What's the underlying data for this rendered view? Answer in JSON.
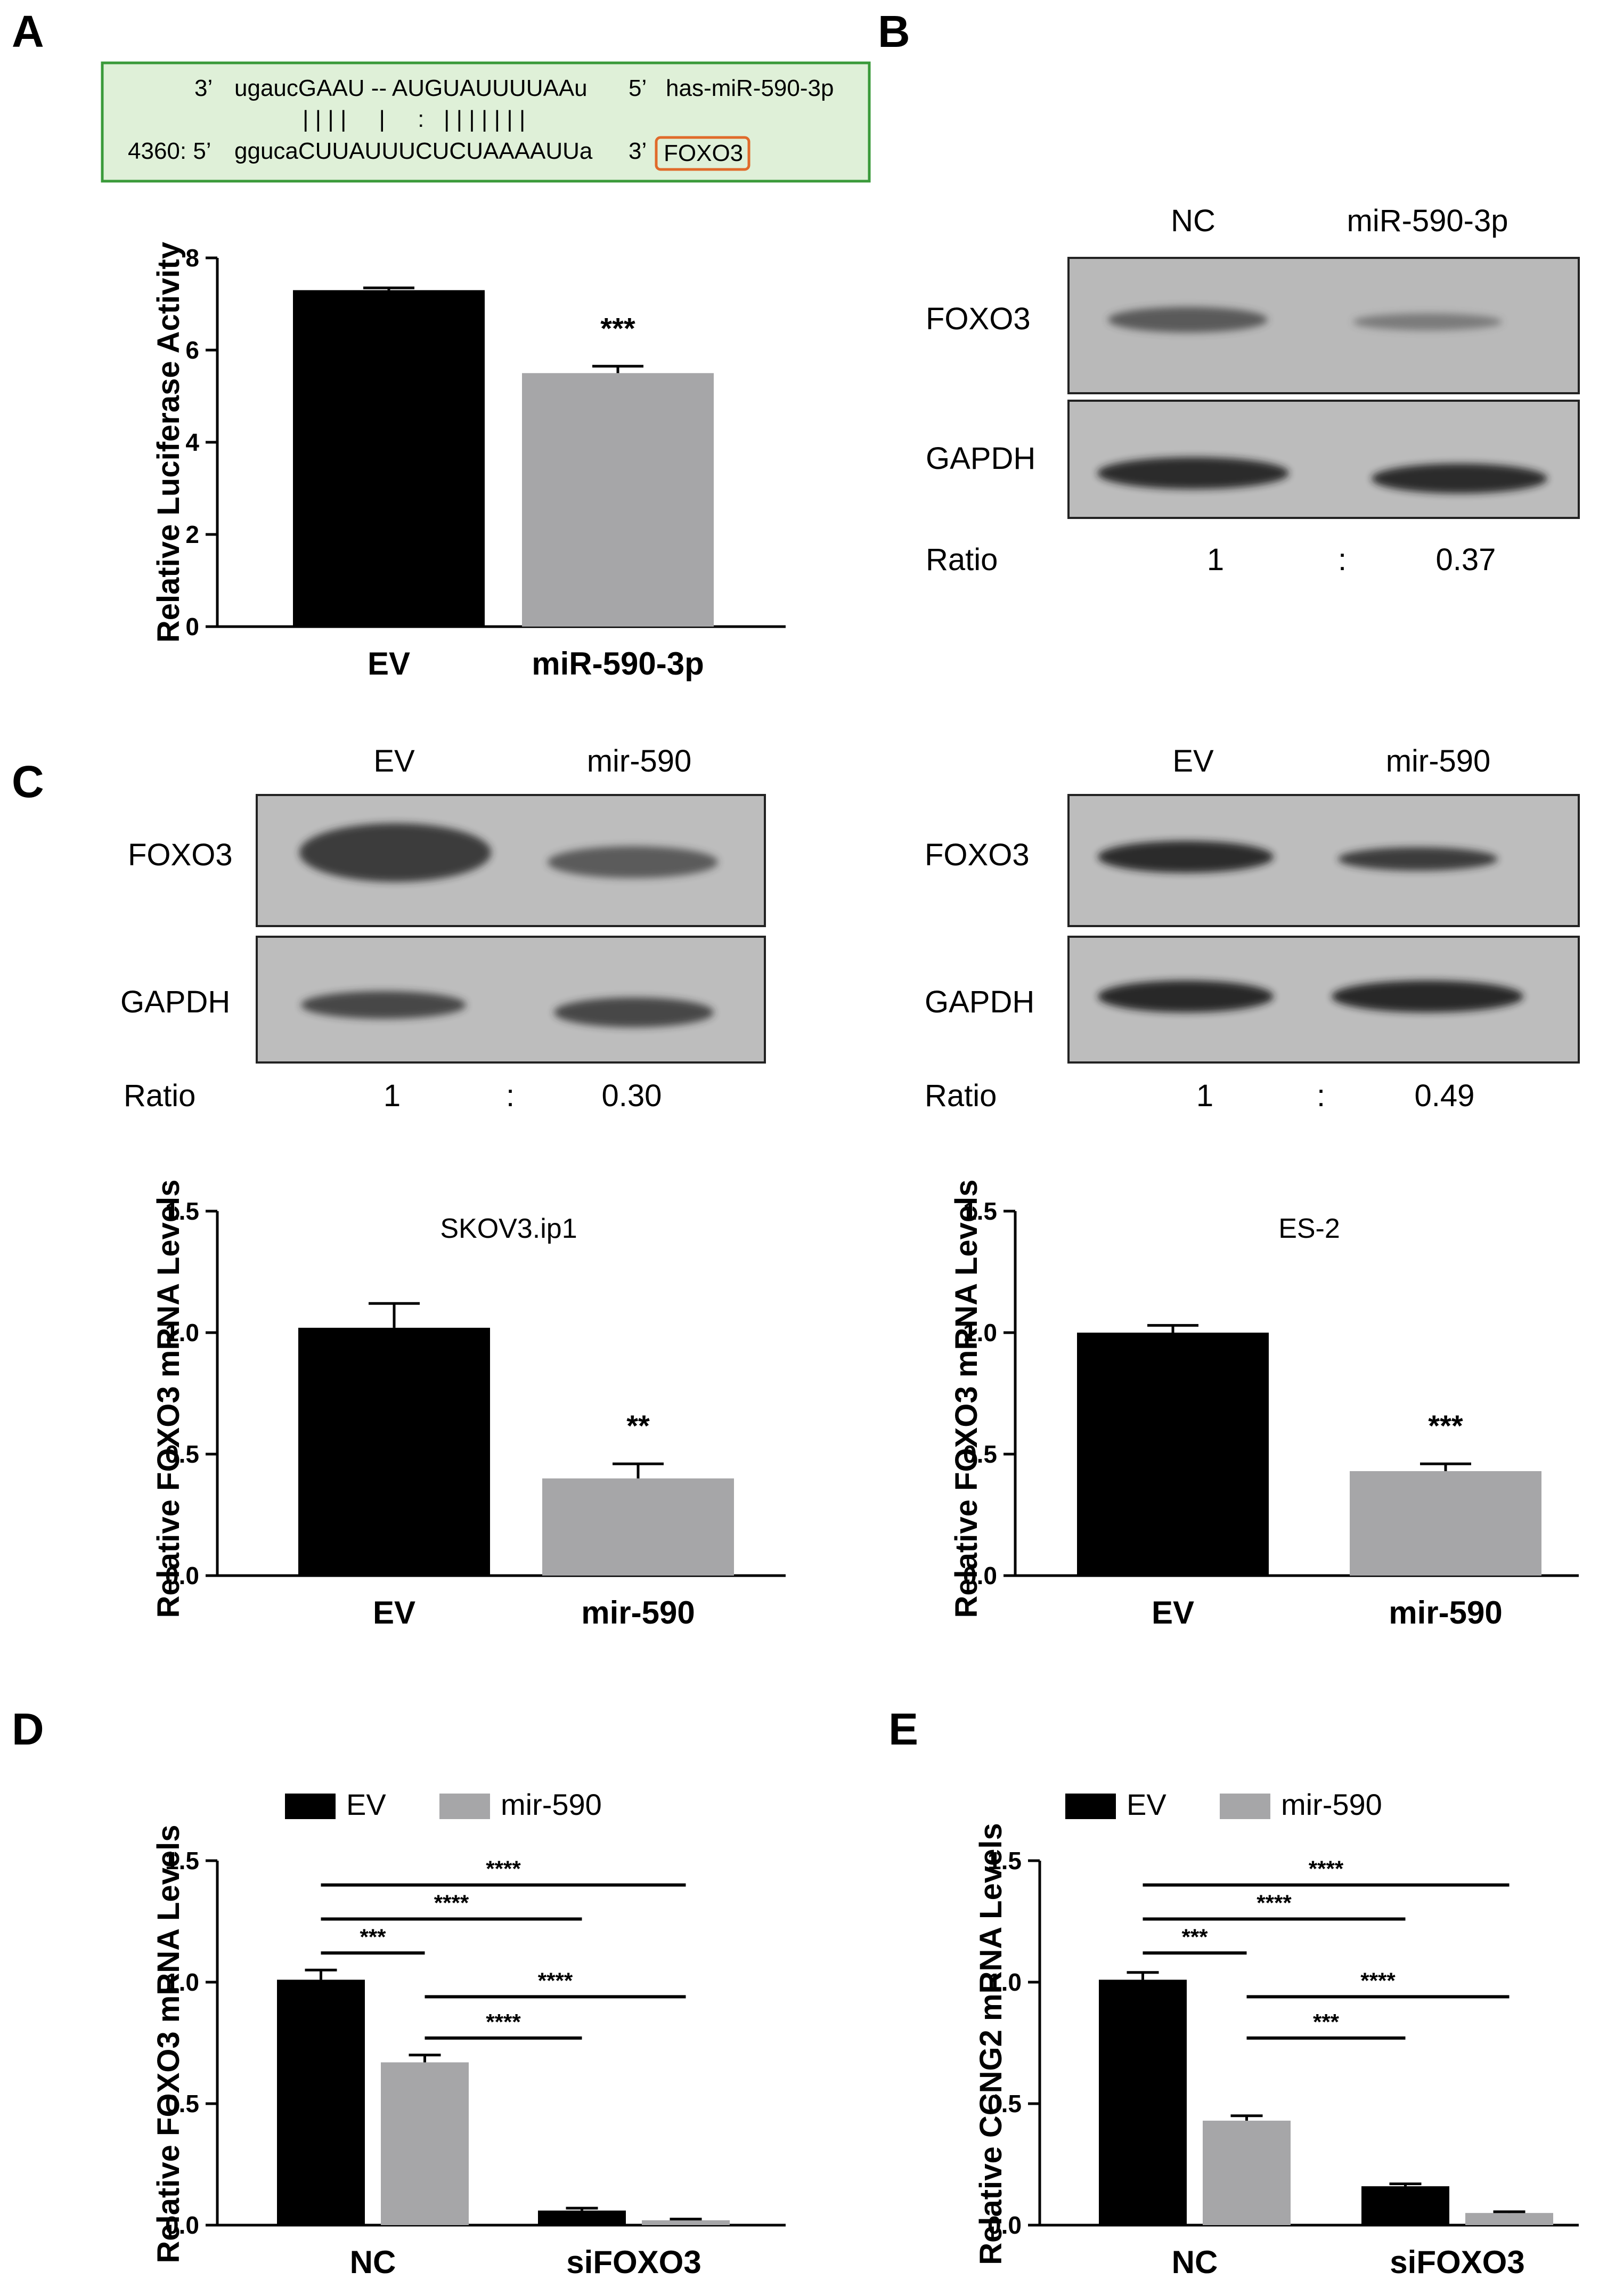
{
  "panels": {
    "A": {
      "letter": "A",
      "sequence": {
        "mirna_prefix": "3’",
        "mirna_seq": "ugaucGAAU -- AUGUAUUUUAAu",
        "mirna_suffix": "5’",
        "mirna_name": "has-miR-590-3p",
        "pairing": "| | | |     |     :   | | | | | | |",
        "target_pos": "4360: 5’",
        "target_seq": "ggucaCUUAUUUCUCUAAAAUUa",
        "target_suffix": "3’",
        "target_gene": "FOXO3"
      }
    },
    "B": {
      "letter": "B",
      "columns": [
        "NC",
        "miR-590-3p"
      ],
      "rows": [
        "FOXO3",
        "GAPDH"
      ],
      "ratio_label": "Ratio",
      "ratio_values": [
        "1",
        ":",
        "0.37"
      ]
    },
    "C": {
      "letter": "C",
      "left": {
        "columns": [
          "EV",
          "mir-590"
        ],
        "rows": [
          "FOXO3",
          "GAPDH"
        ],
        "ratio_label": "Ratio",
        "ratio_values": [
          "1",
          ":",
          "0.30"
        ]
      },
      "right": {
        "columns": [
          "EV",
          "mir-590"
        ],
        "rows": [
          "FOXO3",
          "GAPDH"
        ],
        "ratio_label": "Ratio",
        "ratio_values": [
          "1",
          ":",
          "0.49"
        ]
      }
    },
    "D": {
      "letter": "D"
    },
    "E": {
      "letter": "E"
    }
  },
  "colors": {
    "ev": "#000000",
    "mir590": "#a6a6a8",
    "seq_box_fill": "#dff0d8",
    "seq_box_border": "#3a9a3a",
    "foxo3_highlight": "#e06a2a"
  },
  "chart_data": [
    {
      "id": "chartA",
      "type": "bar",
      "categories": [
        "EV",
        "miR-590-3p"
      ],
      "values": [
        7.3,
        5.5
      ],
      "errors": [
        0.05,
        0.15
      ],
      "colors": [
        "#000000",
        "#a6a6a8"
      ],
      "significance": [
        "",
        "***"
      ],
      "title": "",
      "xlabel": "",
      "ylabel": "Relative Luciferase Activity",
      "ylim": [
        0,
        8
      ],
      "yticks": [
        "0",
        "2",
        "4",
        "6",
        "8"
      ],
      "ytick_values": [
        0,
        2,
        4,
        6,
        8
      ]
    },
    {
      "id": "chartC1",
      "type": "bar",
      "categories": [
        "EV",
        "mir-590"
      ],
      "values": [
        1.02,
        0.4
      ],
      "errors": [
        0.1,
        0.06
      ],
      "colors": [
        "#000000",
        "#a6a6a8"
      ],
      "significance": [
        "",
        "**"
      ],
      "title": "SKOV3.ip1",
      "xlabel": "",
      "ylabel": "Relative FOXO3 mRNA Levels",
      "ylim": [
        0,
        1.5
      ],
      "yticks": [
        "0.0",
        "0.5",
        "1.0",
        "1.5"
      ],
      "ytick_values": [
        0,
        0.5,
        1.0,
        1.5
      ]
    },
    {
      "id": "chartC2",
      "type": "bar",
      "categories": [
        "EV",
        "mir-590"
      ],
      "values": [
        1.0,
        0.43
      ],
      "errors": [
        0.03,
        0.03
      ],
      "colors": [
        "#000000",
        "#a6a6a8"
      ],
      "significance": [
        "",
        "***"
      ],
      "title": "ES-2",
      "xlabel": "",
      "ylabel": "Relative FOXO3 mRNA Levels",
      "ylim": [
        0,
        1.5
      ],
      "yticks": [
        "0.0",
        "0.5",
        "1.0",
        "1.5"
      ],
      "ytick_values": [
        0,
        0.5,
        1.0,
        1.5
      ]
    },
    {
      "id": "chartD",
      "type": "bar",
      "categories": [
        "NC",
        "siFOXO3"
      ],
      "series": [
        {
          "name": "EV",
          "values": [
            1.01,
            0.06
          ],
          "errors": [
            0.04,
            0.01
          ],
          "color": "#000000"
        },
        {
          "name": "mir-590",
          "values": [
            0.67,
            0.02
          ],
          "errors": [
            0.03,
            0.005
          ],
          "color": "#a6a6a8"
        }
      ],
      "comparisons": [
        {
          "a": [
            0,
            0
          ],
          "b": [
            0,
            1
          ],
          "label": "***"
        },
        {
          "a": [
            0,
            0
          ],
          "b": [
            1,
            0
          ],
          "label": "****"
        },
        {
          "a": [
            0,
            0
          ],
          "b": [
            1,
            1
          ],
          "label": "****"
        },
        {
          "a": [
            0,
            1
          ],
          "b": [
            1,
            0
          ],
          "label": "****"
        },
        {
          "a": [
            0,
            1
          ],
          "b": [
            1,
            1
          ],
          "label": "****"
        }
      ],
      "comparison_levels": [
        1.12,
        1.26,
        1.4,
        0.77,
        0.94
      ],
      "title": "",
      "xlabel": "",
      "ylabel": "Relative FOXO3 mRNA Levels",
      "ylim": [
        0,
        1.5
      ],
      "yticks": [
        "0.0",
        "0.5",
        "1.0",
        "1.5"
      ],
      "ytick_values": [
        0,
        0.5,
        1.0,
        1.5
      ],
      "legend": "top-left"
    },
    {
      "id": "chartE",
      "type": "bar",
      "categories": [
        "NC",
        "siFOXO3"
      ],
      "series": [
        {
          "name": "EV",
          "values": [
            1.01,
            0.16
          ],
          "errors": [
            0.03,
            0.01
          ],
          "color": "#000000"
        },
        {
          "name": "mir-590",
          "values": [
            0.43,
            0.05
          ],
          "errors": [
            0.02,
            0.005
          ],
          "color": "#a6a6a8"
        }
      ],
      "comparisons": [
        {
          "a": [
            0,
            0
          ],
          "b": [
            0,
            1
          ],
          "label": "***"
        },
        {
          "a": [
            0,
            0
          ],
          "b": [
            1,
            0
          ],
          "label": "****"
        },
        {
          "a": [
            0,
            0
          ],
          "b": [
            1,
            1
          ],
          "label": "****"
        },
        {
          "a": [
            0,
            1
          ],
          "b": [
            1,
            0
          ],
          "label": "***"
        },
        {
          "a": [
            0,
            1
          ],
          "b": [
            1,
            1
          ],
          "label": "****"
        }
      ],
      "comparison_levels": [
        1.12,
        1.26,
        1.4,
        0.77,
        0.94
      ],
      "title": "",
      "xlabel": "",
      "ylabel": "Relative CCNG2 mRNA Levels",
      "ylim": [
        0,
        1.5
      ],
      "yticks": [
        "0.0",
        "0.5",
        "1.0",
        "1.5"
      ],
      "ytick_values": [
        0,
        0.5,
        1.0,
        1.5
      ],
      "legend": "top-left"
    }
  ]
}
